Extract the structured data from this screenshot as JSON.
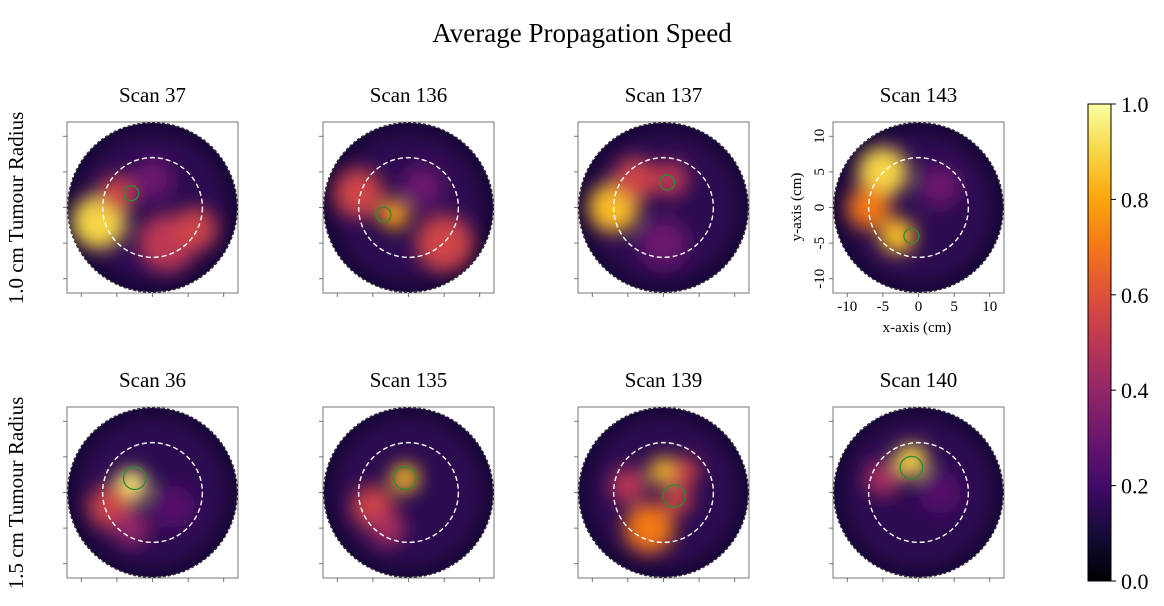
{
  "title": "Average Propagation Speed",
  "row_labels": [
    "1.0 cm Tumour Radius",
    "1.5 cm Tumour Radius"
  ],
  "axis": {
    "xlabel": "x-axis (cm)",
    "ylabel": "y-axis (cm)",
    "xticks": [
      "-10",
      "-5",
      "0",
      "5",
      "10"
    ],
    "yticks": [
      "10",
      "5",
      "0",
      "-5",
      "-10"
    ]
  },
  "colorbar": {
    "colormap": "inferno",
    "ticks": [
      "0.0",
      "0.2",
      "0.4",
      "0.6",
      "0.8",
      "1.0"
    ],
    "range": [
      0,
      1
    ]
  },
  "chart_data": {
    "type": "heatmap",
    "title": "Average Propagation Speed",
    "xlabel": "x-axis (cm)",
    "ylabel": "y-axis (cm)",
    "xlim": [
      -12,
      12
    ],
    "ylim": [
      -12,
      12
    ],
    "value_range": [
      0,
      1
    ],
    "domain_radius_cm": 12,
    "dashed_circle_radius_cm": 7,
    "panels": [
      {
        "title": "Scan 37",
        "row": 0,
        "tumour": {
          "x": -3,
          "y": 2,
          "r": 1.0
        },
        "blobs": [
          {
            "x": -7.5,
            "y": -2,
            "r": 3.8,
            "v": 0.9
          },
          {
            "x": -5,
            "y": 2,
            "r": 2.5,
            "v": 0.55
          },
          {
            "x": 2,
            "y": -5,
            "r": 4,
            "v": 0.5
          },
          {
            "x": 6,
            "y": -3,
            "r": 3,
            "v": 0.55
          },
          {
            "x": 0,
            "y": 4,
            "r": 3,
            "v": 0.3
          }
        ]
      },
      {
        "title": "Scan 136",
        "row": 0,
        "tumour": {
          "x": -3.5,
          "y": -1,
          "r": 1.0
        },
        "blobs": [
          {
            "x": -7,
            "y": 2,
            "r": 3.5,
            "v": 0.55
          },
          {
            "x": -2,
            "y": -1,
            "r": 2,
            "v": 0.8
          },
          {
            "x": 5,
            "y": -5,
            "r": 4,
            "v": 0.55
          },
          {
            "x": 2,
            "y": 3,
            "r": 3,
            "v": 0.3
          }
        ]
      },
      {
        "title": "Scan 137",
        "row": 0,
        "tumour": {
          "x": 0.5,
          "y": 3.5,
          "r": 1.0
        },
        "blobs": [
          {
            "x": -7,
            "y": 0,
            "r": 3.5,
            "v": 0.85
          },
          {
            "x": -4,
            "y": 4,
            "r": 3,
            "v": 0.55
          },
          {
            "x": 1,
            "y": 4,
            "r": 2.5,
            "v": 0.5
          },
          {
            "x": 0,
            "y": -5,
            "r": 3.5,
            "v": 0.3
          }
        ]
      },
      {
        "title": "Scan 143",
        "row": 0,
        "tumour": {
          "x": -1,
          "y": -4,
          "r": 1.0
        },
        "show_axes": true,
        "blobs": [
          {
            "x": -5,
            "y": 5,
            "r": 3.5,
            "v": 0.9
          },
          {
            "x": -7,
            "y": 0,
            "r": 3,
            "v": 0.7
          },
          {
            "x": -3,
            "y": -4,
            "r": 2.5,
            "v": 0.85
          },
          {
            "x": 3,
            "y": 3,
            "r": 3,
            "v": 0.3
          }
        ]
      },
      {
        "title": "Scan 36",
        "row": 1,
        "tumour": {
          "x": -2.5,
          "y": 2,
          "r": 1.5
        },
        "blobs": [
          {
            "x": -3,
            "y": 1,
            "r": 2.3,
            "v": 0.95
          },
          {
            "x": -6,
            "y": -2,
            "r": 3,
            "v": 0.55
          },
          {
            "x": -3,
            "y": -5,
            "r": 2.5,
            "v": 0.4
          },
          {
            "x": 3,
            "y": -2,
            "r": 3,
            "v": 0.25
          }
        ]
      },
      {
        "title": "Scan 135",
        "row": 1,
        "tumour": {
          "x": -0.5,
          "y": 2,
          "r": 1.5
        },
        "blobs": [
          {
            "x": -0.5,
            "y": 2,
            "r": 2,
            "v": 0.85
          },
          {
            "x": -5,
            "y": -2,
            "r": 3,
            "v": 0.55
          },
          {
            "x": -3,
            "y": -5,
            "r": 2.5,
            "v": 0.45
          }
        ]
      },
      {
        "title": "Scan 139",
        "row": 1,
        "tumour": {
          "x": 1.5,
          "y": -0.5,
          "r": 1.5
        },
        "blobs": [
          {
            "x": 0,
            "y": 3,
            "r": 2,
            "v": 0.85
          },
          {
            "x": -2,
            "y": -5,
            "r": 3.5,
            "v": 0.7
          },
          {
            "x": 2,
            "y": -1,
            "r": 2,
            "v": 0.55
          },
          {
            "x": -5,
            "y": 1,
            "r": 2.5,
            "v": 0.5
          },
          {
            "x": 3,
            "y": 3,
            "r": 2,
            "v": 0.55
          }
        ]
      },
      {
        "title": "Scan 140",
        "row": 1,
        "tumour": {
          "x": -1,
          "y": 3.5,
          "r": 1.5
        },
        "blobs": [
          {
            "x": -1,
            "y": 4.5,
            "r": 2.3,
            "v": 0.9
          },
          {
            "x": -5,
            "y": 2,
            "r": 2.5,
            "v": 0.45
          },
          {
            "x": 3,
            "y": 0,
            "r": 3,
            "v": 0.25
          }
        ]
      }
    ]
  }
}
